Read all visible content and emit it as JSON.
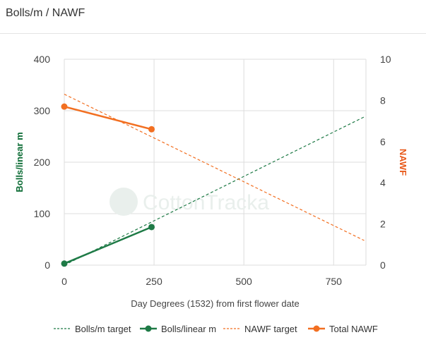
{
  "header": {
    "title": "Bolls/m / NAWF"
  },
  "watermark": {
    "text": "CottonTracka"
  },
  "colors": {
    "bolls": "#1e7a46",
    "nawf": "#f26f21",
    "grid": "#dddddd",
    "left_axis_title": "#0b6b34",
    "right_axis_title": "#e8591a"
  },
  "chart_data": {
    "type": "line",
    "xlabel": "Day Degrees (1532) from first flower date",
    "ylabel_left": "Bolls/linear m",
    "ylabel_right": "NAWF",
    "xlim": [
      0,
      840
    ],
    "ylim_left": [
      0,
      400
    ],
    "ylim_right": [
      0,
      10
    ],
    "x_ticks": [
      "0",
      "250",
      "500",
      "750"
    ],
    "y_left_ticks": [
      "0",
      "100",
      "200",
      "300",
      "400"
    ],
    "y_right_ticks": [
      "0",
      "2",
      "4",
      "6",
      "8",
      "10"
    ],
    "grid": true,
    "legend_position": "bottom",
    "series": [
      {
        "name": "Bolls/m target",
        "axis": "left",
        "style": "dashed",
        "markers": false,
        "x": [
          0,
          835
        ],
        "y": [
          0,
          288
        ]
      },
      {
        "name": "Bolls/linear m",
        "axis": "left",
        "style": "solid",
        "markers": true,
        "x": [
          0,
          243
        ],
        "y": [
          3,
          74
        ]
      },
      {
        "name": "NAWF target",
        "axis": "right",
        "style": "dashed",
        "markers": false,
        "x": [
          0,
          835
        ],
        "y": [
          8.3,
          1.2
        ]
      },
      {
        "name": "Total NAWF",
        "axis": "right",
        "style": "solid",
        "markers": true,
        "x": [
          0,
          243
        ],
        "y": [
          7.7,
          6.6
        ]
      }
    ]
  }
}
